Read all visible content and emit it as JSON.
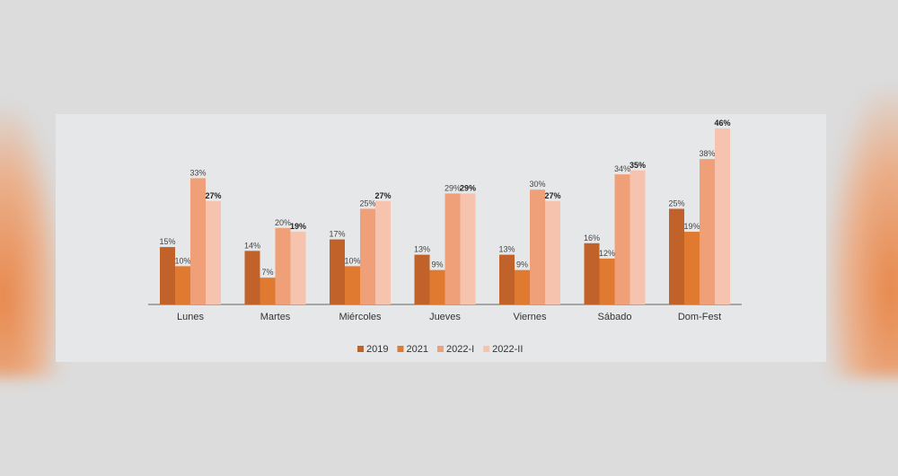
{
  "chart_data": {
    "type": "bar",
    "categories": [
      "Lunes",
      "Martes",
      "Miércoles",
      "Jueves",
      "Viernes",
      "Sábado",
      "Dom-Fest"
    ],
    "series": [
      {
        "name": "2019",
        "color": "#c0622a",
        "values": [
          15,
          14,
          17,
          13,
          13,
          16,
          25
        ]
      },
      {
        "name": "2021",
        "color": "#e07a30",
        "values": [
          10,
          7,
          10,
          9,
          9,
          12,
          19
        ]
      },
      {
        "name": "2022-I",
        "color": "#f0a078",
        "values": [
          33,
          20,
          25,
          29,
          30,
          34,
          38
        ]
      },
      {
        "name": "2022-II",
        "color": "#f6c4ae",
        "values": [
          27,
          19,
          27,
          29,
          27,
          35,
          46
        ]
      }
    ],
    "value_suffix": "%",
    "bold_series": "2022-II",
    "legend_position": "bottom",
    "grid": false,
    "ylim": [
      0,
      46
    ]
  }
}
